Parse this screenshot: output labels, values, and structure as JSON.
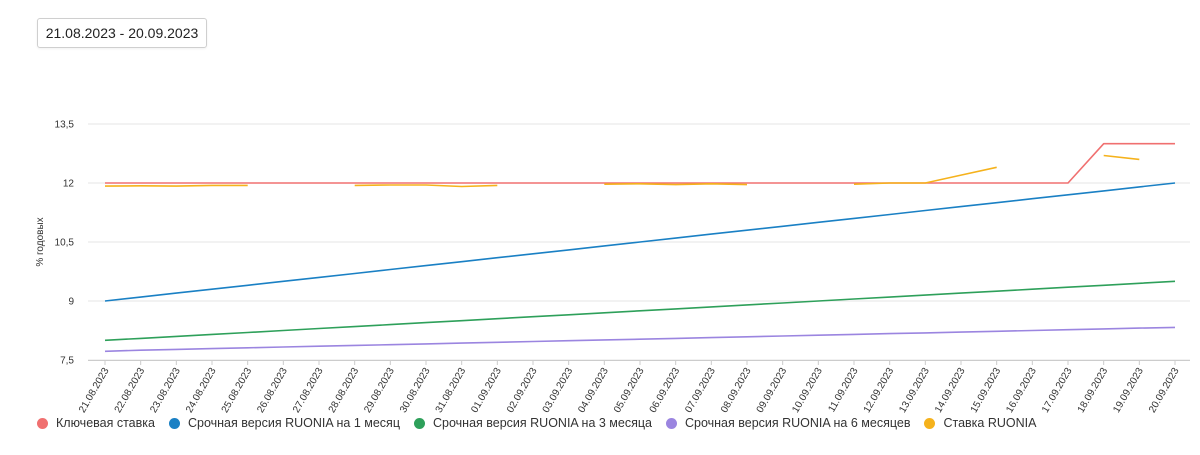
{
  "date_range": "21.08.2023 - 20.09.2023",
  "chart_data": {
    "type": "line",
    "ylabel": "% годовых",
    "ylim": [
      7.5,
      13.5
    ],
    "yticks": [
      "7,5",
      "9",
      "10,5",
      "12",
      "13,5"
    ],
    "ytick_values": [
      7.5,
      9,
      10.5,
      12,
      13.5
    ],
    "grid": true,
    "legend_position": "bottom-left",
    "categories": [
      "21.08.2023",
      "22.08.2023",
      "23.08.2023",
      "24.08.2023",
      "25.08.2023",
      "26.08.2023",
      "27.08.2023",
      "28.08.2023",
      "29.08.2023",
      "30.08.2023",
      "31.08.2023",
      "01.09.2023",
      "02.09.2023",
      "03.09.2023",
      "04.09.2023",
      "05.09.2023",
      "06.09.2023",
      "07.09.2023",
      "08.09.2023",
      "09.09.2023",
      "10.09.2023",
      "11.09.2023",
      "12.09.2023",
      "13.09.2023",
      "14.09.2023",
      "15.09.2023",
      "16.09.2023",
      "17.09.2023",
      "18.09.2023",
      "19.09.2023",
      "20.09.2023"
    ],
    "series": [
      {
        "name": "Ключевая ставка",
        "color": "#f07070",
        "values": [
          12,
          12,
          12,
          12,
          12,
          12,
          12,
          12,
          12,
          12,
          12,
          12,
          12,
          12,
          12,
          12,
          12,
          12,
          12,
          12,
          12,
          12,
          12,
          12,
          12,
          12,
          12,
          12,
          13,
          13,
          13
        ]
      },
      {
        "name": "Срочная версия RUONIA на 1 месяц",
        "color": "#1a80c4",
        "values": [
          9.0,
          9.1,
          9.2,
          9.3,
          9.4,
          9.5,
          9.6,
          9.7,
          9.8,
          9.9,
          10.0,
          10.1,
          10.2,
          10.3,
          10.4,
          10.5,
          10.6,
          10.7,
          10.8,
          10.9,
          11.0,
          11.1,
          11.2,
          11.3,
          11.4,
          11.5,
          11.6,
          11.7,
          11.8,
          11.9,
          12.0
        ]
      },
      {
        "name": "Срочная версия RUONIA на 3 месяца",
        "color": "#2ea05a",
        "values": [
          8.0,
          8.05,
          8.1,
          8.15,
          8.2,
          8.25,
          8.3,
          8.35,
          8.4,
          8.45,
          8.5,
          8.55,
          8.6,
          8.65,
          8.7,
          8.75,
          8.8,
          8.85,
          8.9,
          8.95,
          9.0,
          9.05,
          9.1,
          9.15,
          9.2,
          9.25,
          9.3,
          9.35,
          9.4,
          9.45,
          9.5
        ]
      },
      {
        "name": "Срочная версия RUONIA на 6 месяцев",
        "color": "#9b85e0",
        "values": [
          7.72,
          7.75,
          7.77,
          7.79,
          7.81,
          7.83,
          7.85,
          7.87,
          7.89,
          7.91,
          7.93,
          7.95,
          7.97,
          7.99,
          8.01,
          8.03,
          8.05,
          8.07,
          8.09,
          8.11,
          8.13,
          8.15,
          8.17,
          8.19,
          8.21,
          8.23,
          8.25,
          8.27,
          8.29,
          8.31,
          8.33
        ]
      },
      {
        "name": "Ставка RUONIA",
        "color": "#f5b21c",
        "values": [
          11.92,
          11.93,
          11.92,
          11.94,
          11.94,
          null,
          null,
          11.94,
          11.95,
          11.95,
          11.91,
          11.94,
          null,
          null,
          11.97,
          11.98,
          11.96,
          11.98,
          11.96,
          null,
          null,
          11.97,
          12.0,
          12.0,
          12.2,
          12.4,
          null,
          null,
          12.7,
          12.6,
          null
        ]
      }
    ]
  }
}
